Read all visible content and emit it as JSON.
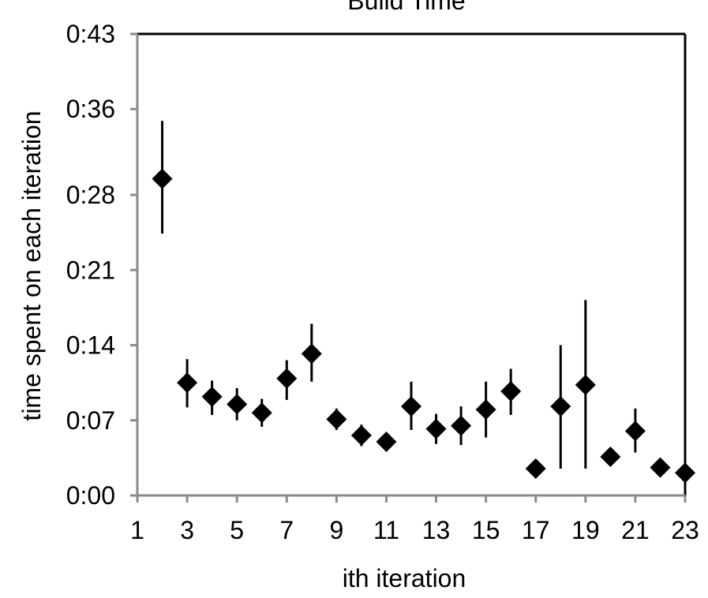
{
  "chart_data": {
    "type": "scatter",
    "title": "Build Time",
    "xlabel": "ith iteration",
    "ylabel": "time spent on each iteration",
    "xlim": [
      1,
      23
    ],
    "ylim": [
      0,
      43
    ],
    "x_ticks": [
      1,
      3,
      5,
      7,
      9,
      11,
      13,
      15,
      17,
      19,
      21,
      23
    ],
    "y_ticks": [
      {
        "value": 0,
        "label": "0:00"
      },
      {
        "value": 7,
        "label": "0:07"
      },
      {
        "value": 14,
        "label": "0:14"
      },
      {
        "value": 21,
        "label": "0:21"
      },
      {
        "value": 28,
        "label": "0:28"
      },
      {
        "value": 36,
        "label": "0:36"
      },
      {
        "value": 43,
        "label": "0:43"
      }
    ],
    "marker": "diamond",
    "color": "#000000",
    "points": [
      {
        "x": 2,
        "y": 29.5,
        "err_low": 24.4,
        "err_high": 34.9
      },
      {
        "x": 3,
        "y": 10.5,
        "err_low": 8.2,
        "err_high": 12.7
      },
      {
        "x": 4,
        "y": 9.2,
        "err_low": 7.5,
        "err_high": 10.7
      },
      {
        "x": 5,
        "y": 8.5,
        "err_low": 7.0,
        "err_high": 10.0
      },
      {
        "x": 6,
        "y": 7.7,
        "err_low": 6.4,
        "err_high": 9.0
      },
      {
        "x": 7,
        "y": 10.9,
        "err_low": 8.9,
        "err_high": 12.6
      },
      {
        "x": 8,
        "y": 13.2,
        "err_low": 10.6,
        "err_high": 16.0
      },
      {
        "x": 9,
        "y": 7.1,
        "err_low": 6.1,
        "err_high": 8.1
      },
      {
        "x": 10,
        "y": 5.6,
        "err_low": 4.6,
        "err_high": 6.6
      },
      {
        "x": 11,
        "y": 5.0,
        "err_low": 4.4,
        "err_high": 5.6
      },
      {
        "x": 12,
        "y": 8.3,
        "err_low": 6.1,
        "err_high": 10.6
      },
      {
        "x": 13,
        "y": 6.2,
        "err_low": 4.8,
        "err_high": 7.6
      },
      {
        "x": 14,
        "y": 6.5,
        "err_low": 4.7,
        "err_high": 8.3
      },
      {
        "x": 15,
        "y": 8.0,
        "err_low": 5.4,
        "err_high": 10.6
      },
      {
        "x": 16,
        "y": 9.7,
        "err_low": 7.5,
        "err_high": 11.8
      },
      {
        "x": 17,
        "y": 2.5,
        "err_low": 2.5,
        "err_high": 2.5
      },
      {
        "x": 18,
        "y": 8.3,
        "err_low": 2.5,
        "err_high": 14.0
      },
      {
        "x": 19,
        "y": 10.3,
        "err_low": 2.5,
        "err_high": 18.2
      },
      {
        "x": 20,
        "y": 3.6,
        "err_low": 3.6,
        "err_high": 3.6
      },
      {
        "x": 21,
        "y": 6.0,
        "err_low": 4.0,
        "err_high": 8.1
      },
      {
        "x": 22,
        "y": 2.6,
        "err_low": 2.6,
        "err_high": 2.6
      },
      {
        "x": 23,
        "y": 2.1,
        "err_low": 2.1,
        "err_high": 2.1
      }
    ],
    "grid": false,
    "legend": "none"
  }
}
